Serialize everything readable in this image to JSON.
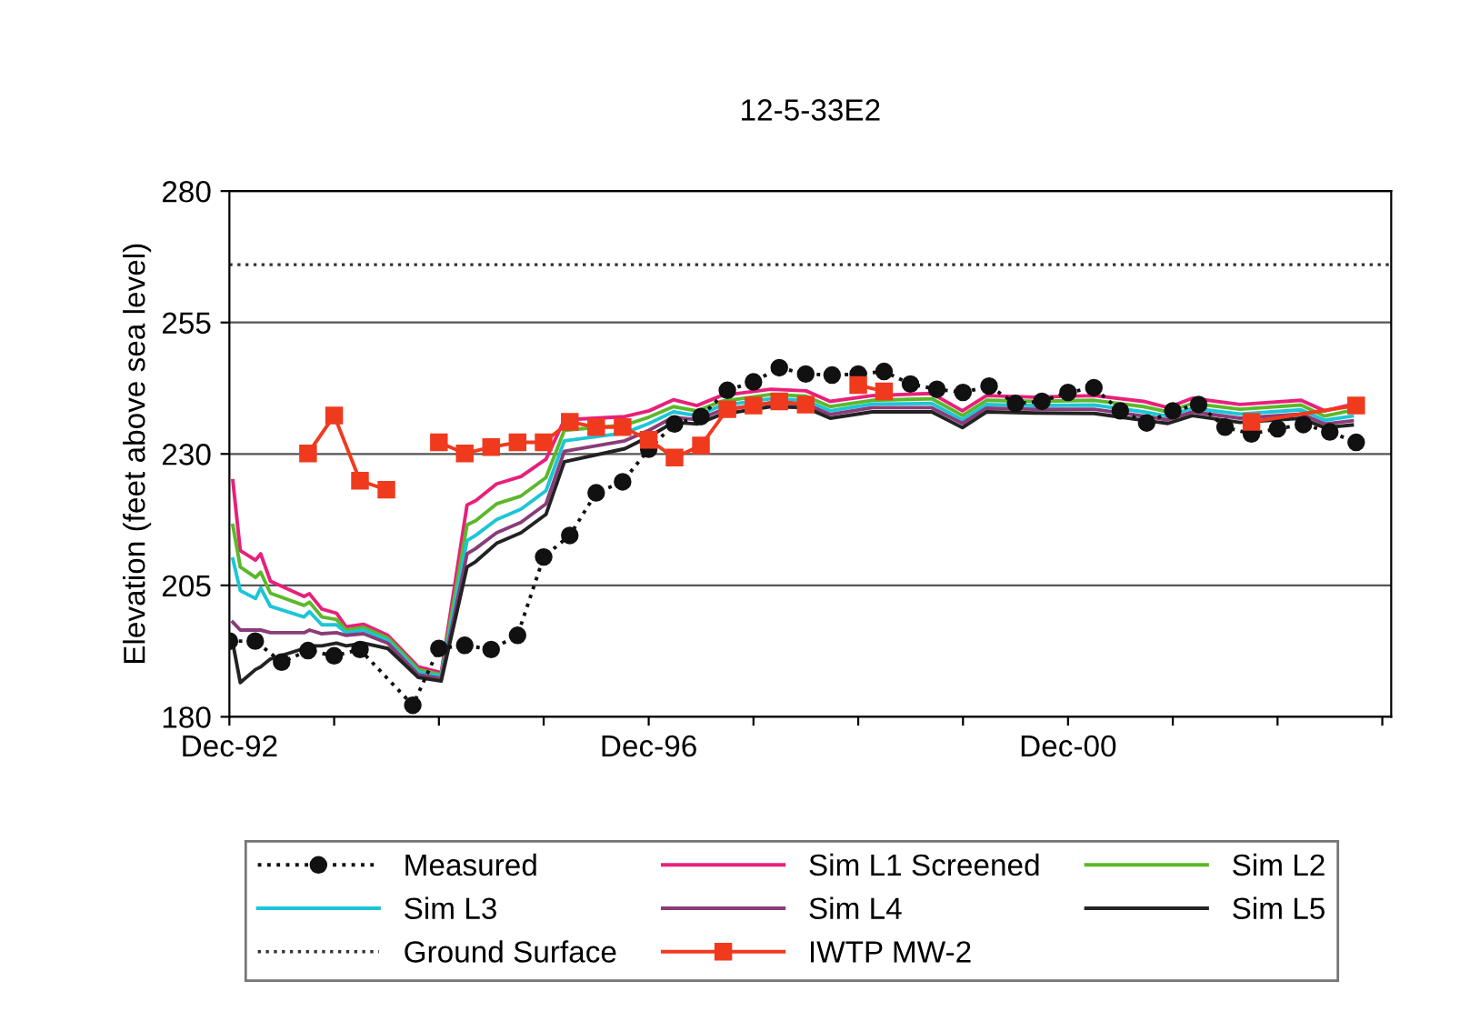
{
  "chart_data": {
    "type": "line",
    "title": "12-5-33E2",
    "ylabel": "Elevation (feet above sea level)",
    "xlim": [
      "1992-12",
      "2004-01"
    ],
    "xticks": [
      {
        "value": "1992-12",
        "label": "Dec-92"
      },
      {
        "value": "1993-12",
        "label": null
      },
      {
        "value": "1994-12",
        "label": null
      },
      {
        "value": "1995-12",
        "label": null
      },
      {
        "value": "1996-12",
        "label": "Dec-96"
      },
      {
        "value": "1997-12",
        "label": null
      },
      {
        "value": "1998-12",
        "label": null
      },
      {
        "value": "1999-12",
        "label": null
      },
      {
        "value": "2000-12",
        "label": "Dec-00"
      },
      {
        "value": "2001-12",
        "label": null
      },
      {
        "value": "2002-12",
        "label": null
      },
      {
        "value": "2003-12",
        "label": null
      }
    ],
    "ylim": [
      180,
      280
    ],
    "yticks": [
      180,
      205,
      230,
      255,
      280
    ],
    "grid": "y",
    "legend": "bottom",
    "ref_lines": [
      {
        "axis": "y",
        "value": 266,
        "label": "Ground Surface",
        "color": "#333333",
        "line_style": "dotted"
      }
    ],
    "series": [
      {
        "name": "Measured",
        "color": "#111111",
        "marker": "circle",
        "line_style": "dotted",
        "x": [
          "1992-12",
          "1993-03",
          "1993-06",
          "1993-09",
          "1993-12",
          "1994-03",
          "1994-09",
          "1994-12",
          "1995-03",
          "1995-06",
          "1995-09",
          "1995-12",
          "1996-03",
          "1996-06",
          "1996-09",
          "1996-12",
          "1997-03",
          "1997-06",
          "1997-09",
          "1997-12",
          "1998-03",
          "1998-06",
          "1998-09",
          "1998-12",
          "1999-03",
          "1999-06",
          "1999-09",
          "1999-12",
          "2000-03",
          "2000-06",
          "2000-09",
          "2000-12",
          "2001-03",
          "2001-06",
          "2001-09",
          "2001-12",
          "2002-03",
          "2002-06",
          "2002-09",
          "2002-12",
          "2003-03",
          "2003-06",
          "2003-09"
        ],
        "values": [
          194.4,
          194.4,
          190.4,
          192.6,
          191.6,
          192.8,
          182.2,
          193.0,
          193.6,
          192.8,
          195.5,
          210.4,
          214.5,
          222.6,
          224.7,
          230.9,
          235.7,
          237.1,
          242.1,
          243.7,
          246.4,
          245.2,
          245.0,
          245.2,
          245.7,
          243.3,
          242.3,
          241.7,
          242.9,
          239.6,
          240.0,
          241.7,
          242.6,
          238.2,
          235.9,
          238.2,
          239.4,
          235.1,
          233.8,
          234.8,
          235.6,
          234.2,
          232.2
        ]
      },
      {
        "name": "Sim L1 Screened",
        "color": "#e8207a",
        "marker": "none",
        "line_style": "solid",
        "x": [
          "1992-12-13",
          "1993-01-08",
          "1993-03-02",
          "1993-03-20",
          "1993-04-23",
          "1993-08-18",
          "1993-09-06",
          "1993-10-19",
          "1993-12-09",
          "1994-01-12",
          "1994-03-13",
          "1994-06-06",
          "1994-09-20",
          "1994-12-09",
          "1995-03-09",
          "1995-04-08",
          "1995-06-20",
          "1995-09-13",
          "1995-12-09",
          "1996-02-11",
          "1996-09-09",
          "1996-12-02",
          "1997-02-25",
          "1997-05-18",
          "1997-08-11",
          "1998-01-30",
          "1998-06-02",
          "1998-08-25",
          "1999-01-19",
          "1999-08-14",
          "1999-11-29",
          "2000-02-21",
          "2000-08-07",
          "2001-03-02",
          "2001-08-21",
          "2001-11-14",
          "2002-02-07",
          "2002-07-23",
          "2003-02-21",
          "2003-05-14",
          "2003-08-18"
        ],
        "values": [
          224.9,
          211.6,
          209.8,
          211.0,
          205.8,
          202.9,
          203.4,
          200.5,
          199.7,
          197.1,
          197.6,
          195.5,
          189.5,
          188.4,
          220.3,
          221.1,
          224.3,
          225.7,
          229.0,
          236.5,
          237.1,
          238.2,
          240.3,
          239.2,
          241.1,
          242.3,
          242.0,
          240.0,
          241.1,
          241.5,
          238.2,
          241.1,
          240.8,
          241.1,
          240.0,
          238.8,
          240.6,
          239.4,
          240.2,
          238.2,
          239.4
        ]
      },
      {
        "name": "Sim L2",
        "color": "#5cb82a",
        "marker": "none",
        "line_style": "solid",
        "x": [
          "1992-12-13",
          "1993-01-08",
          "1993-03-02",
          "1993-03-20",
          "1993-04-23",
          "1993-08-18",
          "1993-09-06",
          "1993-10-19",
          "1993-12-09",
          "1994-01-12",
          "1994-03-13",
          "1994-06-06",
          "1994-09-20",
          "1994-12-09",
          "1995-03-09",
          "1995-04-08",
          "1995-06-20",
          "1995-09-13",
          "1995-12-09",
          "1996-02-11",
          "1996-09-09",
          "1996-12-02",
          "1997-02-25",
          "1997-05-18",
          "1997-08-11",
          "1998-01-30",
          "1998-06-02",
          "1998-08-25",
          "1999-01-19",
          "1999-08-14",
          "1999-11-29",
          "2000-02-21",
          "2000-08-07",
          "2001-03-02",
          "2001-08-21",
          "2001-11-14",
          "2002-02-07",
          "2002-07-23",
          "2003-02-21",
          "2003-05-14",
          "2003-08-18"
        ],
        "values": [
          216.4,
          208.5,
          206.5,
          207.5,
          203.5,
          201.2,
          201.8,
          199.0,
          198.5,
          196.5,
          197.0,
          195.0,
          189.0,
          188.0,
          216.5,
          217.3,
          220.5,
          222.0,
          225.5,
          234.5,
          235.5,
          237.0,
          239.0,
          238.2,
          240.0,
          241.3,
          241.0,
          239.0,
          240.2,
          240.5,
          237.3,
          240.2,
          240.0,
          240.2,
          239.0,
          238.0,
          239.6,
          238.5,
          239.3,
          237.2,
          238.3
        ]
      },
      {
        "name": "Sim L3",
        "color": "#1cc6d6",
        "marker": "none",
        "line_style": "solid",
        "x": [
          "1992-12-13",
          "1993-01-08",
          "1993-03-02",
          "1993-03-20",
          "1993-04-23",
          "1993-08-18",
          "1993-09-06",
          "1993-10-19",
          "1993-12-09",
          "1994-01-12",
          "1994-03-13",
          "1994-06-06",
          "1994-09-20",
          "1994-12-09",
          "1995-03-09",
          "1995-04-08",
          "1995-06-20",
          "1995-09-13",
          "1995-12-09",
          "1996-02-11",
          "1996-09-09",
          "1996-12-02",
          "1997-02-25",
          "1997-05-18",
          "1997-08-11",
          "1998-01-30",
          "1998-06-02",
          "1998-08-25",
          "1999-01-19",
          "1999-08-14",
          "1999-11-29",
          "2000-02-21",
          "2000-08-07",
          "2001-03-02",
          "2001-08-21",
          "2001-11-14",
          "2002-02-07",
          "2002-07-23",
          "2003-02-21",
          "2003-05-14",
          "2003-08-18"
        ],
        "values": [
          210.0,
          204.0,
          202.5,
          204.5,
          201.0,
          199.0,
          200.0,
          197.5,
          197.5,
          196.0,
          196.5,
          194.5,
          188.5,
          187.7,
          213.5,
          214.5,
          217.5,
          219.5,
          223.0,
          232.5,
          234.0,
          235.8,
          238.0,
          237.3,
          239.2,
          240.5,
          240.2,
          238.2,
          239.5,
          239.6,
          236.5,
          239.4,
          239.2,
          239.3,
          238.0,
          237.2,
          238.7,
          237.6,
          238.4,
          236.4,
          237.2
        ]
      },
      {
        "name": "Sim L4",
        "color": "#8a3c78",
        "marker": "none",
        "line_style": "solid",
        "x": [
          "1992-12-13",
          "1993-01-08",
          "1993-03-02",
          "1993-03-20",
          "1993-04-23",
          "1993-08-18",
          "1993-09-06",
          "1993-10-19",
          "1993-12-09",
          "1994-01-12",
          "1994-03-13",
          "1994-06-06",
          "1994-09-20",
          "1994-12-09",
          "1995-03-09",
          "1995-04-08",
          "1995-06-20",
          "1995-09-13",
          "1995-12-09",
          "1996-02-11",
          "1996-09-09",
          "1996-12-02",
          "1997-02-25",
          "1997-05-18",
          "1997-08-11",
          "1998-01-30",
          "1998-06-02",
          "1998-08-25",
          "1999-01-19",
          "1999-08-14",
          "1999-11-29",
          "2000-02-21",
          "2000-08-07",
          "2001-03-02",
          "2001-08-21",
          "2001-11-14",
          "2002-02-07",
          "2002-07-23",
          "2003-02-21",
          "2003-05-14",
          "2003-08-18"
        ],
        "values": [
          198.0,
          196.5,
          196.5,
          196.5,
          196.0,
          196.0,
          196.5,
          195.8,
          196.0,
          195.5,
          195.8,
          194.0,
          188.0,
          187.3,
          211.0,
          212.0,
          215.0,
          217.0,
          220.5,
          230.5,
          232.5,
          234.5,
          237.0,
          236.5,
          238.3,
          239.7,
          239.5,
          237.5,
          238.8,
          238.8,
          235.8,
          238.7,
          238.5,
          238.5,
          237.2,
          236.5,
          238.0,
          236.8,
          237.6,
          235.7,
          236.3
        ]
      },
      {
        "name": "Sim L5",
        "color": "#222222",
        "marker": "none",
        "line_style": "solid",
        "x": [
          "1992-12-13",
          "1993-01-08",
          "1993-03-02",
          "1993-03-20",
          "1993-04-23",
          "1993-08-18",
          "1993-09-06",
          "1993-10-19",
          "1993-12-09",
          "1994-01-12",
          "1994-03-13",
          "1994-06-06",
          "1994-09-20",
          "1994-12-09",
          "1995-03-09",
          "1995-04-08",
          "1995-06-20",
          "1995-09-13",
          "1995-12-09",
          "1996-02-11",
          "1996-09-09",
          "1996-12-02",
          "1997-02-25",
          "1997-05-18",
          "1997-08-11",
          "1998-01-30",
          "1998-06-02",
          "1998-08-25",
          "1999-01-19",
          "1999-08-14",
          "1999-11-29",
          "2000-02-21",
          "2000-08-07",
          "2001-03-02",
          "2001-08-21",
          "2001-11-14",
          "2002-02-07",
          "2002-07-23",
          "2003-02-21",
          "2003-05-14",
          "2003-08-18"
        ],
        "values": [
          194.0,
          186.5,
          189.0,
          189.5,
          191.0,
          193.0,
          193.5,
          193.5,
          194.0,
          193.5,
          194.0,
          193.0,
          187.5,
          186.8,
          208.5,
          209.5,
          213.0,
          215.0,
          218.5,
          228.5,
          231.0,
          233.3,
          236.0,
          235.7,
          237.5,
          239.0,
          238.8,
          236.8,
          238.0,
          238.0,
          235.0,
          238.0,
          237.8,
          237.7,
          236.4,
          235.8,
          237.3,
          236.0,
          236.8,
          235.0,
          235.5
        ]
      },
      {
        "name": "IWTP MW-2",
        "color": "#f03a1e",
        "marker": "square",
        "line_style": "solid",
        "x": [
          "1993-09",
          "1993-12",
          "1994-03",
          "1994-06",
          "1994-09",
          "1994-12",
          "1995-03",
          "1995-06",
          "1995-09",
          "1995-12",
          "1996-03",
          "1996-06",
          "1996-09",
          "1996-12",
          "1997-03",
          "1997-06",
          "1997-09",
          "1997-12",
          "1998-03",
          "1998-06",
          "1998-09",
          "1998-12",
          "1999-03",
          "2001-12",
          "2002-09",
          "2003-09"
        ],
        "values": [
          230.1,
          237.3,
          224.9,
          223.2,
          null,
          232.2,
          230.1,
          231.3,
          232.2,
          232.2,
          236.1,
          235.1,
          235.1,
          232.7,
          229.3,
          231.6,
          238.5,
          239.2,
          240.0,
          239.4,
          null,
          243.1,
          241.9,
          null,
          236.1,
          239.2
        ]
      }
    ]
  }
}
